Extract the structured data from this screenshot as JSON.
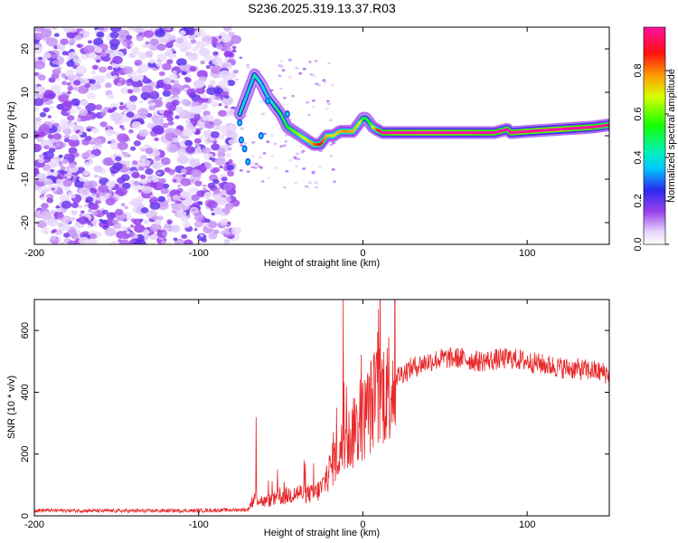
{
  "title": "S236.2025.319.13.37.R03",
  "chart_data": [
    {
      "type": "heatmap",
      "name": "spectrogram",
      "xlabel": "Height of straight line (km)",
      "ylabel": "Frequency (Hz)",
      "xlim": [
        -200,
        150
      ],
      "ylim": [
        -25,
        25
      ],
      "xticks": [
        -200,
        -100,
        0,
        100
      ],
      "xtick_labels": [
        "-200",
        "-100",
        "0",
        "100"
      ],
      "yticks": [
        -20,
        -10,
        0,
        10,
        20
      ],
      "ytick_labels": [
        "-20",
        "-10",
        "0",
        "10",
        "20"
      ],
      "noise_region_x": [
        -200,
        -77
      ],
      "ridge": {
        "x": [
          -75,
          -70,
          -66,
          -62,
          -58,
          -54,
          -50,
          -46,
          -42,
          -38,
          -34,
          -30,
          -26,
          -22,
          -18,
          -14,
          -10,
          -6,
          -2,
          0,
          2,
          4,
          6,
          8,
          12,
          20,
          40,
          60,
          80,
          88,
          90,
          100,
          120,
          140,
          150
        ],
        "y": [
          5,
          10,
          14,
          12,
          9,
          7,
          5,
          2,
          1,
          0,
          -1,
          -2,
          -2,
          0,
          0,
          1,
          1,
          1,
          3,
          4,
          4,
          3,
          2,
          1.5,
          0.7,
          0.7,
          0.7,
          0.7,
          0.7,
          1.5,
          0.7,
          1,
          1.5,
          2,
          2.5
        ],
        "amplitude": [
          0.25,
          0.2,
          0.25,
          0.2,
          0.2,
          0.25,
          0.3,
          0.35,
          0.4,
          0.45,
          0.5,
          0.6,
          0.7,
          0.55,
          0.5,
          0.55,
          0.6,
          0.55,
          0.5,
          0.35,
          0.3,
          0.35,
          0.45,
          0.6,
          0.85,
          0.95,
          0.98,
          0.95,
          0.9,
          0.8,
          0.9,
          0.95,
          0.98,
          0.9,
          0.75
        ]
      }
    },
    {
      "type": "colorbar",
      "label": "Normalized spectral amplitude",
      "range": [
        0,
        1
      ],
      "ticks": [
        0.0,
        0.2,
        0.4,
        0.6,
        0.8
      ],
      "tick_labels": [
        "0.0",
        "0.2",
        "0.4",
        "0.6",
        "0.8"
      ]
    },
    {
      "type": "line",
      "name": "snr",
      "xlabel": "Height of straight line (km)",
      "ylabel": "SNR (10 * v/v)",
      "xlim": [
        -200,
        150
      ],
      "ylim": [
        0,
        700
      ],
      "xticks": [
        -200,
        -100,
        0,
        100
      ],
      "xtick_labels": [
        "-200",
        "-100",
        "0",
        "100"
      ],
      "yticks": [
        0,
        200,
        400,
        600
      ],
      "ytick_labels": [
        "0",
        "200",
        "400",
        "600"
      ],
      "color": "#e8282a",
      "trend": {
        "x": [
          -200,
          -150,
          -100,
          -70,
          -66,
          -60,
          -50,
          -40,
          -30,
          -25,
          -20,
          -15,
          -10,
          -5,
          0,
          5,
          10,
          15,
          20,
          30,
          40,
          50,
          60,
          70,
          80,
          90,
          100,
          110,
          120,
          130,
          140,
          150
        ],
        "y": [
          18,
          16,
          17,
          20,
          60,
          45,
          60,
          75,
          70,
          90,
          150,
          200,
          240,
          270,
          310,
          360,
          390,
          420,
          450,
          480,
          500,
          510,
          510,
          500,
          505,
          510,
          500,
          490,
          480,
          475,
          470,
          460
        ]
      },
      "spikes": [
        {
          "x": -65,
          "y": 320
        },
        {
          "x": -52,
          "y": 150
        },
        {
          "x": -30,
          "y": 170
        },
        {
          "x": -18,
          "y": 270
        },
        {
          "x": -16,
          "y": 350
        },
        {
          "x": -12,
          "y": 700
        },
        {
          "x": -10,
          "y": 420
        },
        {
          "x": -5,
          "y": 380
        },
        {
          "x": 150,
          "y": 355
        }
      ]
    }
  ]
}
